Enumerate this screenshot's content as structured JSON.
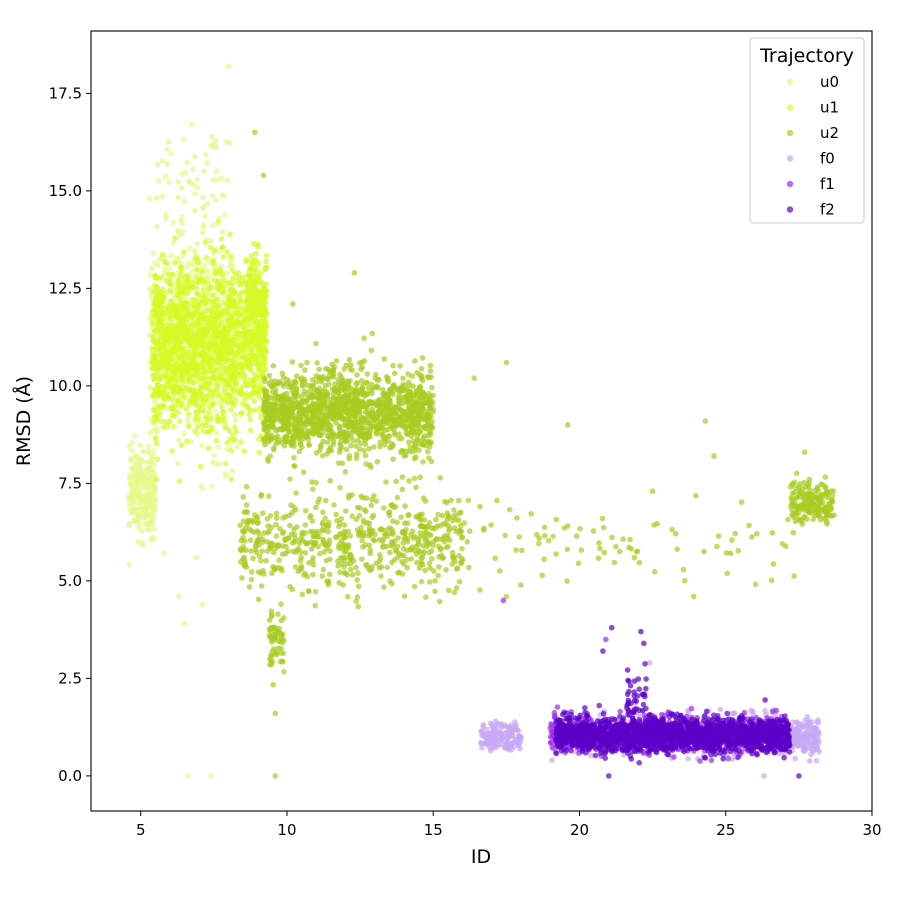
{
  "chart_data": {
    "type": "scatter",
    "xlabel": "ID",
    "ylabel": "RMSD (Å)",
    "xlim": [
      3.3,
      30.0
    ],
    "ylim": [
      -0.9,
      19.1
    ],
    "xticks": [
      5,
      10,
      15,
      20,
      25,
      30
    ],
    "yticks": [
      0.0,
      2.5,
      5.0,
      7.5,
      10.0,
      12.5,
      15.0,
      17.5
    ],
    "xtick_labels": [
      "5",
      "10",
      "15",
      "20",
      "25",
      "30"
    ],
    "ytick_labels": [
      "0.0",
      "2.5",
      "5.0",
      "7.5",
      "10.0",
      "12.5",
      "15.0",
      "17.5"
    ],
    "grid": false,
    "legend": {
      "title": "Trajectory",
      "position": "top-right"
    },
    "series": [
      {
        "name": "u0",
        "color": "#e6f98c",
        "clusters": [
          {
            "x_range": [
              4.6,
              5.5
            ],
            "y_center": 7.3,
            "y_spread": 0.9,
            "count": 260
          },
          {
            "x_range": [
              5.3,
              8.3
            ],
            "y_center": 11.2,
            "y_spread": 2.2,
            "count": 700
          },
          {
            "x_range": [
              5.5,
              8.1
            ],
            "y_center": 15.5,
            "y_spread": 1.1,
            "count": 50
          }
        ],
        "points": [
          {
            "x": 6.6,
            "y": 0.0
          },
          {
            "x": 7.4,
            "y": 0.0
          },
          {
            "x": 8.0,
            "y": 18.2
          },
          {
            "x": 6.3,
            "y": 4.6
          },
          {
            "x": 6.5,
            "y": 3.9
          },
          {
            "x": 6.9,
            "y": 5.6
          },
          {
            "x": 7.1,
            "y": 4.4
          },
          {
            "x": 5.8,
            "y": 5.7
          }
        ]
      },
      {
        "name": "u1",
        "color": "#d5f925",
        "clusters": [
          {
            "x_range": [
              5.4,
              9.3
            ],
            "y_center": 11.0,
            "y_spread": 1.7,
            "count": 1500
          },
          {
            "x_range": [
              8.6,
              9.3
            ],
            "y_center": 12.2,
            "y_spread": 0.9,
            "count": 150
          }
        ],
        "points": []
      },
      {
        "name": "u2",
        "color": "#a8cc1f",
        "clusters": [
          {
            "x_range": [
              9.2,
              15.0
            ],
            "y_center": 9.3,
            "y_spread": 0.9,
            "count": 1400
          },
          {
            "x_range": [
              8.4,
              16.0
            ],
            "y_center": 6.0,
            "y_spread": 1.0,
            "count": 600
          },
          {
            "x_range": [
              9.4,
              9.9
            ],
            "y_center": 3.5,
            "y_spread": 0.8,
            "count": 60
          },
          {
            "x_range": [
              16.0,
              27.5
            ],
            "y_center": 6.0,
            "y_spread": 0.8,
            "count": 90
          },
          {
            "x_range": [
              27.2,
              28.7
            ],
            "y_center": 7.0,
            "y_spread": 0.45,
            "count": 180
          }
        ],
        "points": [
          {
            "x": 9.6,
            "y": 0.0
          },
          {
            "x": 9.6,
            "y": 1.6
          },
          {
            "x": 9.2,
            "y": 15.4
          },
          {
            "x": 8.9,
            "y": 16.5
          },
          {
            "x": 12.3,
            "y": 12.9
          },
          {
            "x": 10.2,
            "y": 12.1
          },
          {
            "x": 24.3,
            "y": 9.1
          },
          {
            "x": 19.6,
            "y": 9.0
          },
          {
            "x": 17.5,
            "y": 10.6
          },
          {
            "x": 16.4,
            "y": 10.2
          },
          {
            "x": 24.6,
            "y": 8.2
          },
          {
            "x": 22.5,
            "y": 7.3
          },
          {
            "x": 27.7,
            "y": 8.3
          },
          {
            "x": 17.5,
            "y": 4.6
          },
          {
            "x": 23.9,
            "y": 4.6
          }
        ]
      },
      {
        "name": "f0",
        "color": "#c8a8f5",
        "clusters": [
          {
            "x_range": [
              16.6,
              18.0
            ],
            "y_center": 1.0,
            "y_spread": 0.3,
            "count": 150
          },
          {
            "x_range": [
              26.8,
              28.2
            ],
            "y_center": 1.0,
            "y_spread": 0.35,
            "count": 220
          },
          {
            "x_range": [
              19.0,
              27.0
            ],
            "y_center": 1.1,
            "y_spread": 0.45,
            "count": 300
          }
        ],
        "points": [
          {
            "x": 26.3,
            "y": 0.0
          },
          {
            "x": 22.4,
            "y": 2.9
          }
        ]
      },
      {
        "name": "f1",
        "color": "#9a2fe6",
        "clusters": [
          {
            "x_range": [
              19.0,
              27.0
            ],
            "y_center": 1.05,
            "y_spread": 0.4,
            "count": 700
          }
        ],
        "points": [
          {
            "x": 17.4,
            "y": 4.5
          },
          {
            "x": 20.9,
            "y": 3.5
          }
        ]
      },
      {
        "name": "f2",
        "color": "#5b00c8",
        "clusters": [
          {
            "x_range": [
              19.2,
              27.2
            ],
            "y_center": 1.05,
            "y_spread": 0.35,
            "count": 1700
          },
          {
            "x_range": [
              21.6,
              22.3
            ],
            "y_center": 2.0,
            "y_spread": 0.6,
            "count": 40
          }
        ],
        "points": [
          {
            "x": 21.1,
            "y": 3.8
          },
          {
            "x": 22.1,
            "y": 3.7
          },
          {
            "x": 21.0,
            "y": 0.0
          },
          {
            "x": 27.5,
            "y": 0.0
          },
          {
            "x": 20.8,
            "y": 3.2
          },
          {
            "x": 22.2,
            "y": 3.4
          }
        ]
      }
    ]
  }
}
